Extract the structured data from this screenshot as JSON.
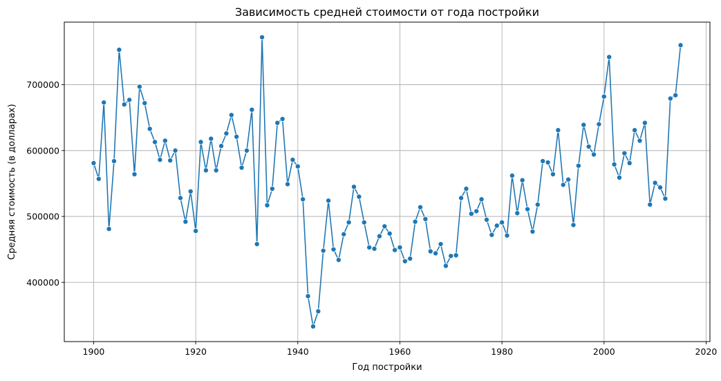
{
  "chart_data": {
    "type": "line",
    "title": "Зависимость средней стоимости от года постройки",
    "xlabel": "Год постройки",
    "ylabel": "Средняя стоимость (в долларах)",
    "xlim": [
      1894.25,
      2020.75
    ],
    "ylim": [
      310000,
      795000
    ],
    "xticks": [
      1900,
      1920,
      1940,
      1960,
      1980,
      2000,
      2020
    ],
    "xtick_labels": [
      "1900",
      "1920",
      "1940",
      "1960",
      "1980",
      "2000",
      "2020"
    ],
    "yticks": [
      400000,
      500000,
      600000,
      700000
    ],
    "ytick_labels": [
      "400000",
      "500000",
      "600000",
      "700000"
    ],
    "grid": true,
    "legend": "none",
    "series": [
      {
        "color": "#1f77b4",
        "marker": "circle",
        "x": [
          1900,
          1901,
          1902,
          1903,
          1904,
          1905,
          1906,
          1907,
          1908,
          1909,
          1910,
          1911,
          1912,
          1913,
          1914,
          1915,
          1916,
          1917,
          1918,
          1919,
          1920,
          1921,
          1922,
          1923,
          1924,
          1925,
          1926,
          1927,
          1928,
          1929,
          1930,
          1931,
          1932,
          1933,
          1934,
          1935,
          1936,
          1937,
          1938,
          1939,
          1940,
          1941,
          1942,
          1943,
          1944,
          1945,
          1946,
          1947,
          1948,
          1949,
          1950,
          1951,
          1952,
          1953,
          1954,
          1955,
          1956,
          1957,
          1958,
          1959,
          1960,
          1961,
          1962,
          1963,
          1964,
          1965,
          1966,
          1967,
          1968,
          1969,
          1970,
          1971,
          1972,
          1973,
          1974,
          1975,
          1976,
          1977,
          1978,
          1979,
          1980,
          1981,
          1982,
          1983,
          1984,
          1985,
          1986,
          1987,
          1988,
          1989,
          1990,
          1991,
          1992,
          1993,
          1994,
          1995,
          1996,
          1997,
          1998,
          1999,
          2000,
          2001,
          2002,
          2003,
          2004,
          2005,
          2006,
          2007,
          2008,
          2009,
          2010,
          2011,
          2012,
          2013,
          2014,
          2015
        ],
        "y": [
          581000,
          557000,
          673000,
          481000,
          584000,
          753000,
          670000,
          677000,
          564000,
          697000,
          672000,
          633000,
          613000,
          586000,
          615000,
          585000,
          600000,
          528000,
          492000,
          538000,
          478000,
          613000,
          570000,
          618000,
          570000,
          607000,
          626000,
          654000,
          621000,
          574000,
          600000,
          662000,
          458000,
          772000,
          517000,
          542000,
          642000,
          648000,
          549000,
          586000,
          576000,
          526000,
          379000,
          333000,
          356000,
          448000,
          524000,
          450000,
          434000,
          473000,
          491000,
          545000,
          530000,
          491000,
          453000,
          451000,
          470000,
          485000,
          474000,
          449000,
          453000,
          432000,
          436000,
          492000,
          514000,
          496000,
          447000,
          444000,
          458000,
          425000,
          440000,
          441000,
          528000,
          542000,
          504000,
          508000,
          526000,
          495000,
          472000,
          486000,
          491000,
          471000,
          562000,
          505000,
          555000,
          511000,
          477000,
          518000,
          584000,
          582000,
          564000,
          631000,
          548000,
          556000,
          487000,
          577000,
          639000,
          606000,
          594000,
          640000,
          682000,
          742000,
          579000,
          559000,
          596000,
          581000,
          631000,
          615000,
          642000,
          518000,
          551000,
          544000,
          527000,
          679000,
          684000,
          760000
        ]
      }
    ]
  }
}
